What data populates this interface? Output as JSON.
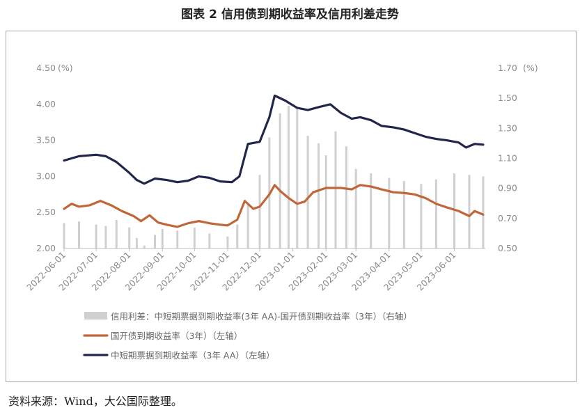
{
  "page": {
    "title": "图表 2  信用债到期收益率及信用利差走势",
    "source": "资料来源：Wind，大公国际整理。"
  },
  "chart_data": {
    "type": "line",
    "title": "图表 2  信用债到期收益率及信用利差走势",
    "left_axis": {
      "ylim": [
        2.0,
        4.5
      ],
      "ticks": [
        "2.00",
        "2.50",
        "3.00",
        "3.50",
        "4.00",
        "4.50"
      ],
      "unit": "(%)"
    },
    "right_axis": {
      "ylim": [
        0.5,
        1.7
      ],
      "ticks": [
        "0.50",
        "0.70",
        "0.90",
        "1.10",
        "1.30",
        "1.50",
        "1.70"
      ],
      "unit": "(%)"
    },
    "x_axis": {
      "range": [
        "2022-06-01",
        "2023-06-30"
      ],
      "tick_labels": [
        "2022-06-01",
        "2022-07-01",
        "2022-08-01",
        "2022-09-01",
        "2022-10-01",
        "2022-11-01",
        "2022-12-01",
        "2023-01-01",
        "2023-02-01",
        "2023-03-01",
        "2023-04-01",
        "2023-05-01",
        "2023-06-01"
      ]
    },
    "grid": false,
    "legend_position": "bottom",
    "series": [
      {
        "name": "信用利差：中短期票据到期收益率(3年 AA)-国开债到期收益率（3年）（右轴）",
        "type": "bar",
        "axis": "right",
        "color": "#d0d0d0",
        "points": [
          [
            "2022-06-01",
            0.67
          ],
          [
            "2022-06-15",
            0.68
          ],
          [
            "2022-07-01",
            0.66
          ],
          [
            "2022-07-10",
            0.65
          ],
          [
            "2022-07-20",
            0.69
          ],
          [
            "2022-08-01",
            0.64
          ],
          [
            "2022-08-08",
            0.57
          ],
          [
            "2022-08-15",
            0.52
          ],
          [
            "2022-08-25",
            0.59
          ],
          [
            "2022-09-01",
            0.63
          ],
          [
            "2022-09-15",
            0.62
          ],
          [
            "2022-10-01",
            0.64
          ],
          [
            "2022-10-15",
            0.6
          ],
          [
            "2022-11-01",
            0.58
          ],
          [
            "2022-11-10",
            0.66
          ],
          [
            "2022-11-20",
            0.8
          ],
          [
            "2022-12-01",
            0.99
          ],
          [
            "2022-12-10",
            1.24
          ],
          [
            "2022-12-20",
            1.4
          ],
          [
            "2022-12-28",
            1.45
          ],
          [
            "2023-01-05",
            1.43
          ],
          [
            "2023-01-15",
            1.25
          ],
          [
            "2023-01-25",
            1.2
          ],
          [
            "2023-02-01",
            1.12
          ],
          [
            "2023-02-10",
            1.28
          ],
          [
            "2023-02-20",
            1.18
          ],
          [
            "2023-03-01",
            1.03
          ],
          [
            "2023-03-15",
            1.0
          ],
          [
            "2023-04-01",
            0.97
          ],
          [
            "2023-04-15",
            0.95
          ],
          [
            "2023-05-01",
            0.93
          ],
          [
            "2023-05-15",
            0.96
          ],
          [
            "2023-06-01",
            1.0
          ],
          [
            "2023-06-15",
            0.99
          ],
          [
            "2023-06-28",
            0.98
          ]
        ]
      },
      {
        "name": "国开债到期收益率（3年）（左轴）",
        "type": "line",
        "axis": "left",
        "color": "#c0673a",
        "points": [
          [
            "2022-06-01",
            2.55
          ],
          [
            "2022-06-08",
            2.62
          ],
          [
            "2022-06-15",
            2.58
          ],
          [
            "2022-06-25",
            2.6
          ],
          [
            "2022-07-05",
            2.66
          ],
          [
            "2022-07-15",
            2.6
          ],
          [
            "2022-07-25",
            2.52
          ],
          [
            "2022-08-05",
            2.45
          ],
          [
            "2022-08-12",
            2.38
          ],
          [
            "2022-08-20",
            2.46
          ],
          [
            "2022-08-28",
            2.36
          ],
          [
            "2022-09-05",
            2.33
          ],
          [
            "2022-09-15",
            2.3
          ],
          [
            "2022-09-25",
            2.35
          ],
          [
            "2022-10-05",
            2.38
          ],
          [
            "2022-10-15",
            2.35
          ],
          [
            "2022-10-25",
            2.33
          ],
          [
            "2022-11-01",
            2.32
          ],
          [
            "2022-11-10",
            2.4
          ],
          [
            "2022-11-17",
            2.66
          ],
          [
            "2022-11-25",
            2.55
          ],
          [
            "2022-12-01",
            2.58
          ],
          [
            "2022-12-10",
            2.75
          ],
          [
            "2022-12-15",
            2.88
          ],
          [
            "2022-12-20",
            2.8
          ],
          [
            "2022-12-28",
            2.7
          ],
          [
            "2023-01-05",
            2.62
          ],
          [
            "2023-01-12",
            2.65
          ],
          [
            "2023-01-20",
            2.78
          ],
          [
            "2023-02-01",
            2.84
          ],
          [
            "2023-02-15",
            2.84
          ],
          [
            "2023-02-25",
            2.82
          ],
          [
            "2023-03-05",
            2.88
          ],
          [
            "2023-03-15",
            2.86
          ],
          [
            "2023-03-25",
            2.82
          ],
          [
            "2023-04-05",
            2.78
          ],
          [
            "2023-04-15",
            2.77
          ],
          [
            "2023-04-25",
            2.75
          ],
          [
            "2023-05-05",
            2.7
          ],
          [
            "2023-05-15",
            2.62
          ],
          [
            "2023-05-25",
            2.57
          ],
          [
            "2023-06-05",
            2.52
          ],
          [
            "2023-06-15",
            2.45
          ],
          [
            "2023-06-20",
            2.52
          ],
          [
            "2023-06-28",
            2.47
          ]
        ]
      },
      {
        "name": "中短期票据到期收益率（3年 AA）（左轴）",
        "type": "line",
        "axis": "left",
        "color": "#22264a",
        "points": [
          [
            "2022-06-01",
            3.22
          ],
          [
            "2022-06-15",
            3.28
          ],
          [
            "2022-07-01",
            3.3
          ],
          [
            "2022-07-10",
            3.28
          ],
          [
            "2022-07-20",
            3.2
          ],
          [
            "2022-08-01",
            3.05
          ],
          [
            "2022-08-08",
            2.95
          ],
          [
            "2022-08-15",
            2.9
          ],
          [
            "2022-08-25",
            2.97
          ],
          [
            "2022-09-05",
            2.95
          ],
          [
            "2022-09-15",
            2.92
          ],
          [
            "2022-09-25",
            2.94
          ],
          [
            "2022-10-05",
            3.0
          ],
          [
            "2022-10-15",
            2.98
          ],
          [
            "2022-10-25",
            2.93
          ],
          [
            "2022-11-05",
            2.92
          ],
          [
            "2022-11-12",
            3.0
          ],
          [
            "2022-11-20",
            3.45
          ],
          [
            "2022-12-01",
            3.48
          ],
          [
            "2022-12-10",
            3.82
          ],
          [
            "2022-12-15",
            4.12
          ],
          [
            "2022-12-25",
            4.05
          ],
          [
            "2023-01-05",
            3.95
          ],
          [
            "2023-01-15",
            3.92
          ],
          [
            "2023-01-25",
            3.96
          ],
          [
            "2023-02-05",
            4.0
          ],
          [
            "2023-02-15",
            3.88
          ],
          [
            "2023-02-25",
            3.8
          ],
          [
            "2023-03-05",
            3.82
          ],
          [
            "2023-03-15",
            3.78
          ],
          [
            "2023-03-25",
            3.7
          ],
          [
            "2023-04-05",
            3.68
          ],
          [
            "2023-04-15",
            3.65
          ],
          [
            "2023-04-25",
            3.6
          ],
          [
            "2023-05-05",
            3.55
          ],
          [
            "2023-05-15",
            3.52
          ],
          [
            "2023-05-25",
            3.5
          ],
          [
            "2023-06-05",
            3.47
          ],
          [
            "2023-06-12",
            3.4
          ],
          [
            "2023-06-20",
            3.45
          ],
          [
            "2023-06-28",
            3.44
          ]
        ]
      }
    ]
  }
}
